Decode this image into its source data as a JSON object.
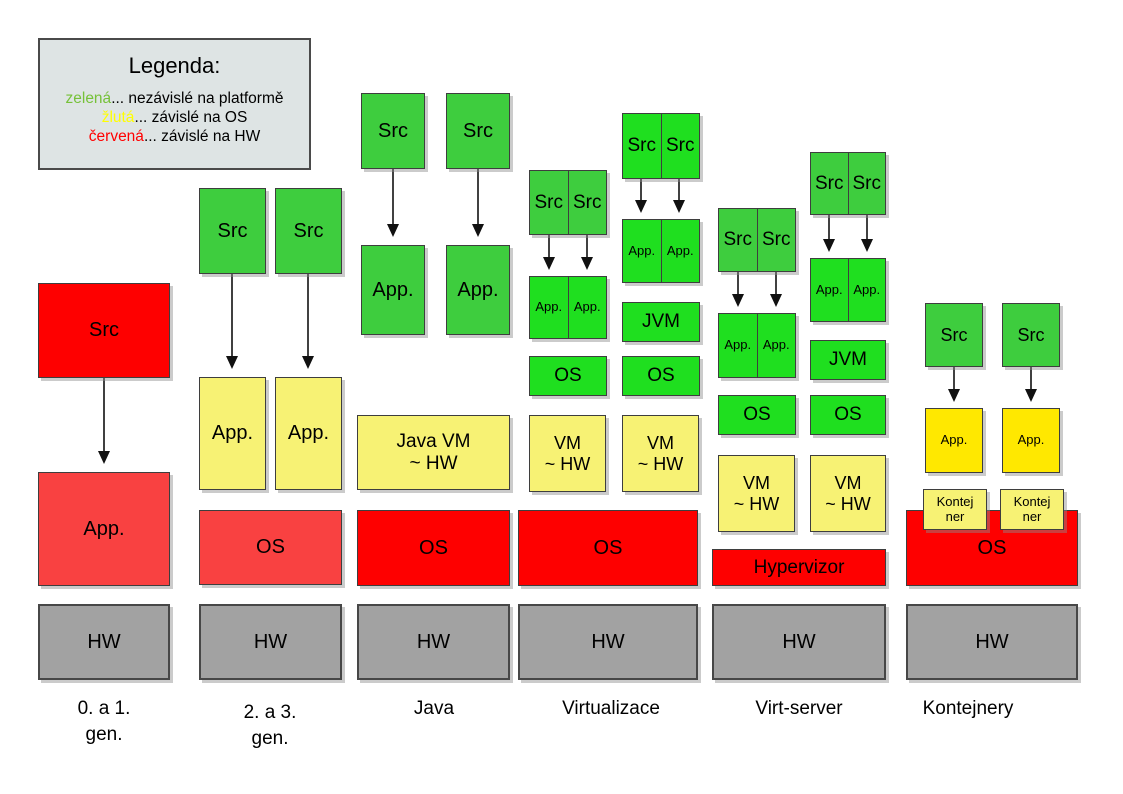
{
  "legend": {
    "title": "Legenda:",
    "items": [
      {
        "term": "zelená",
        "rest": "... nezávislé na platformě",
        "color": "#76C139"
      },
      {
        "term": "žlutá",
        "rest": "... závislé na OS",
        "color": "#FFFF00"
      },
      {
        "term": "červená",
        "rest": "... závislé na HW",
        "color": "#FF0000"
      }
    ]
  },
  "palette": {
    "red": "#FE0000",
    "red_light": "#F94141",
    "green_src": "#3ECD3E",
    "green_bright": "#1FDF1F",
    "yellow_pale": "#F7F274",
    "yellow_bright": "#FFE800",
    "gray": "#A2A2A2",
    "legend_bg": "#DEE4E4"
  },
  "columns": [
    {
      "label": "0. a 1.\ngen.",
      "boxes": [
        {
          "label": "Src",
          "role": "red"
        },
        {
          "label": "App.",
          "role": "red-light"
        },
        {
          "label": "HW",
          "role": "gray"
        }
      ]
    },
    {
      "label": "2. a 3.\ngen.",
      "boxes": [
        {
          "label": "Src",
          "role": "green-src"
        },
        {
          "label": "Src",
          "role": "green-src"
        },
        {
          "label": "App.",
          "role": "yellow-pale"
        },
        {
          "label": "App.",
          "role": "yellow-pale"
        },
        {
          "label": "OS",
          "role": "red-light"
        },
        {
          "label": "HW",
          "role": "gray"
        }
      ]
    },
    {
      "label": "Java",
      "boxes": [
        {
          "label": "Src",
          "role": "green-src"
        },
        {
          "label": "Src",
          "role": "green-src"
        },
        {
          "label": "App.",
          "role": "green-src"
        },
        {
          "label": "App.",
          "role": "green-src"
        },
        {
          "label": "Java VM\n~ HW",
          "role": "yellow-pale"
        },
        {
          "label": "OS",
          "role": "red"
        },
        {
          "label": "HW",
          "role": "gray"
        }
      ]
    },
    {
      "label": "Virtualizace",
      "boxes": [
        {
          "cells": [
            "Src",
            "Src"
          ],
          "role": "green-src"
        },
        {
          "cells": [
            "Src",
            "Src"
          ],
          "role": "green-bright"
        },
        {
          "cells": [
            "App.",
            "App."
          ],
          "role": "green-bright"
        },
        {
          "cells": [
            "App.",
            "App."
          ],
          "role": "green-bright"
        },
        {
          "label": "JVM",
          "role": "green-bright"
        },
        {
          "label": "OS",
          "role": "green-bright"
        },
        {
          "label": "OS",
          "role": "green-bright"
        },
        {
          "label": "VM\n~ HW",
          "role": "yellow-pale"
        },
        {
          "label": "VM\n~ HW",
          "role": "yellow-pale"
        },
        {
          "label": "OS",
          "role": "red"
        },
        {
          "label": "HW",
          "role": "gray"
        }
      ]
    },
    {
      "label": "Virt-server",
      "boxes": [
        {
          "cells": [
            "Src",
            "Src"
          ],
          "role": "green-src"
        },
        {
          "cells": [
            "Src",
            "Src"
          ],
          "role": "green-src"
        },
        {
          "cells": [
            "App.",
            "App."
          ],
          "role": "green-bright"
        },
        {
          "cells": [
            "App.",
            "App."
          ],
          "role": "green-bright"
        },
        {
          "label": "JVM",
          "role": "green-bright"
        },
        {
          "label": "OS",
          "role": "green-bright"
        },
        {
          "label": "OS",
          "role": "green-bright"
        },
        {
          "label": "VM\n~ HW",
          "role": "yellow-pale"
        },
        {
          "label": "VM\n~ HW",
          "role": "yellow-pale"
        },
        {
          "label": "Hypervizor",
          "role": "red"
        },
        {
          "label": "HW",
          "role": "gray"
        }
      ]
    },
    {
      "label": "Kontejnery",
      "boxes": [
        {
          "label": "Src",
          "role": "green-src"
        },
        {
          "label": "Src",
          "role": "green-src"
        },
        {
          "label": "App.",
          "role": "yellow-bright"
        },
        {
          "label": "App.",
          "role": "yellow-bright"
        },
        {
          "label": "Kontej\nner",
          "role": "yellow-pale"
        },
        {
          "label": "Kontej\nner",
          "role": "yellow-pale"
        },
        {
          "label": "OS",
          "role": "red"
        },
        {
          "label": "HW",
          "role": "gray"
        }
      ]
    }
  ]
}
